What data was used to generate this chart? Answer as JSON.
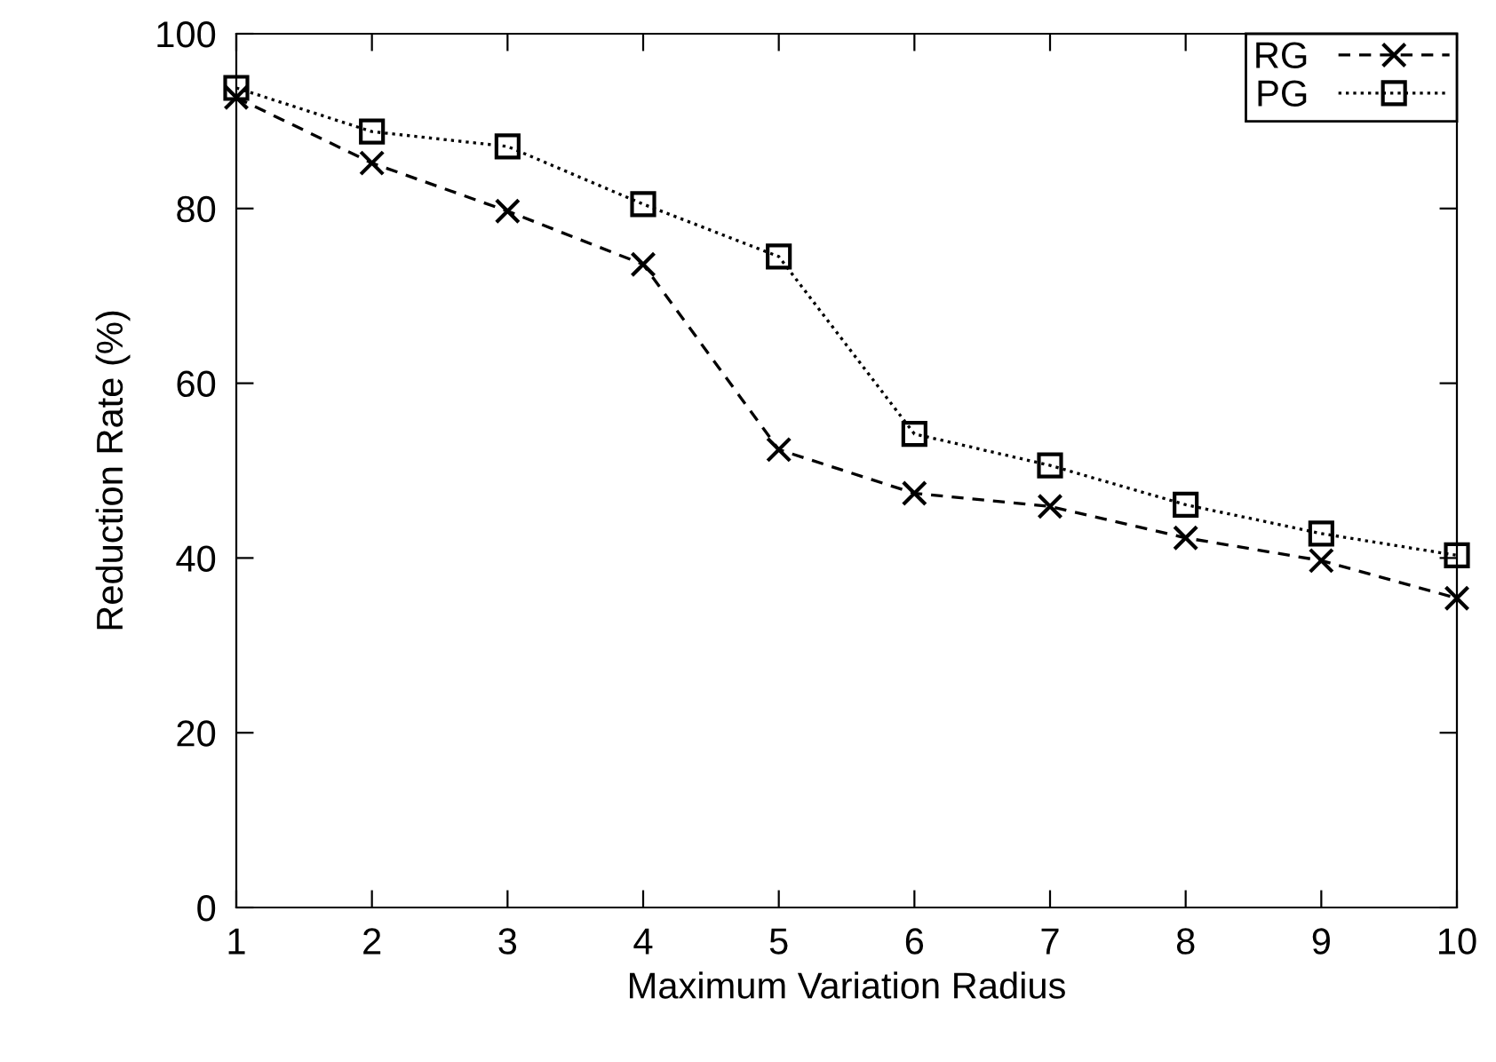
{
  "chart_data": {
    "type": "line",
    "xlabel": "Maximum Variation Radius",
    "ylabel": "Reduction Rate (%)",
    "x": [
      1,
      2,
      3,
      4,
      5,
      6,
      7,
      8,
      9,
      10
    ],
    "series": [
      {
        "name": "RG",
        "color": "#000000",
        "marker": "cross",
        "line_style": "dashed",
        "values": [
          92.7,
          85.2,
          79.7,
          73.6,
          52.4,
          47.4,
          45.9,
          42.3,
          39.7,
          35.4
        ]
      },
      {
        "name": "PG",
        "color": "#000000",
        "marker": "square",
        "line_style": "dotted",
        "values": [
          93.8,
          88.8,
          87.1,
          80.5,
          74.5,
          54.2,
          50.6,
          46.1,
          42.8,
          40.3
        ]
      }
    ],
    "xlim": [
      1,
      10
    ],
    "xticks": [
      1,
      2,
      3,
      4,
      5,
      6,
      7,
      8,
      9,
      10
    ],
    "ylim": [
      0,
      100
    ],
    "yticks": [
      0,
      20,
      40,
      60,
      80,
      100
    ],
    "grid": false,
    "legend": "top right"
  }
}
